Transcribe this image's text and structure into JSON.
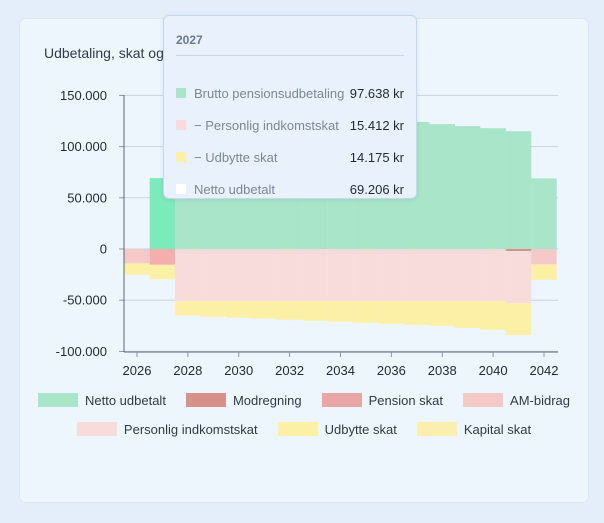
{
  "chart_data": {
    "type": "bar",
    "title": "Udbetaling, skat og",
    "x": [
      2026,
      2027,
      2028,
      2029,
      2030,
      2031,
      2032,
      2033,
      2034,
      2035,
      2036,
      2037,
      2038,
      2039,
      2040,
      2041,
      2042
    ],
    "x_ticks": [
      "2026",
      "2028",
      "2030",
      "2032",
      "2034",
      "2036",
      "2038",
      "2040",
      "2042"
    ],
    "y_ticks": [
      "150.000",
      "100.000",
      "50.000",
      "0",
      "-50.000",
      "-100.000"
    ],
    "ylim": [
      -100000,
      150000
    ],
    "stacked": true,
    "series": [
      {
        "name": "Netto udbetalt",
        "color": "#a8e5c9",
        "values": [
          0,
          69206,
          136000,
          135000,
          134000,
          133000,
          132000,
          131000,
          129000,
          128000,
          126000,
          124000,
          122000,
          120000,
          118000,
          115000,
          69000
        ]
      },
      {
        "name": "Modregning",
        "color": "#d98f8a",
        "values": [
          0,
          0,
          0,
          0,
          0,
          0,
          0,
          0,
          0,
          0,
          0,
          0,
          0,
          0,
          0,
          -2000,
          0
        ]
      },
      {
        "name": "Pension skat",
        "color": "#e9a6a6",
        "values": [
          0,
          0,
          0,
          0,
          0,
          0,
          0,
          0,
          0,
          0,
          0,
          0,
          0,
          0,
          0,
          0,
          0
        ]
      },
      {
        "name": "AM-bidrag",
        "color": "#f6c9c9",
        "values": [
          -14000,
          0,
          0,
          0,
          0,
          0,
          0,
          0,
          0,
          0,
          0,
          0,
          0,
          0,
          0,
          0,
          -15000
        ]
      },
      {
        "name": "Personlig indkomstskat",
        "color": "#f8dcdc",
        "values": [
          0,
          -15412,
          -51000,
          -51000,
          -51000,
          -51000,
          -51000,
          -51000,
          -51000,
          -51000,
          -51000,
          -51000,
          -51000,
          -51000,
          -51000,
          -51000,
          0
        ]
      },
      {
        "name": "Udbytte skat",
        "color": "#fbf0a6",
        "values": [
          -11000,
          -14175,
          -14000,
          -15000,
          -16000,
          -17000,
          -18000,
          -19000,
          -20000,
          -21000,
          -22000,
          -23000,
          -24000,
          -26000,
          -28000,
          -31000,
          -15000
        ]
      },
      {
        "name": "Kapital skat",
        "color": "#fbefb0",
        "values": [
          0,
          0,
          0,
          0,
          0,
          0,
          0,
          0,
          0,
          0,
          0,
          0,
          0,
          0,
          0,
          0,
          0
        ]
      }
    ],
    "highlight": {
      "x": 2027,
      "color": "#7deabb"
    },
    "legend_position": "bottom",
    "grid": "horizontal"
  },
  "tooltip": {
    "title": "2027",
    "rows": [
      {
        "label": "Brutto pensionsudbetaling",
        "value": "97.638 kr",
        "color": "#a8e5c9"
      },
      {
        "label": "− Personlig indkomstskat",
        "value": "15.412 kr",
        "color": "#f8dcdc"
      },
      {
        "label": "− Udbytte skat",
        "value": "14.175 kr",
        "color": "#fbf0a6"
      },
      {
        "label": "Netto udbetalt",
        "value": "69.206 kr",
        "color": "#ffffff"
      }
    ]
  }
}
